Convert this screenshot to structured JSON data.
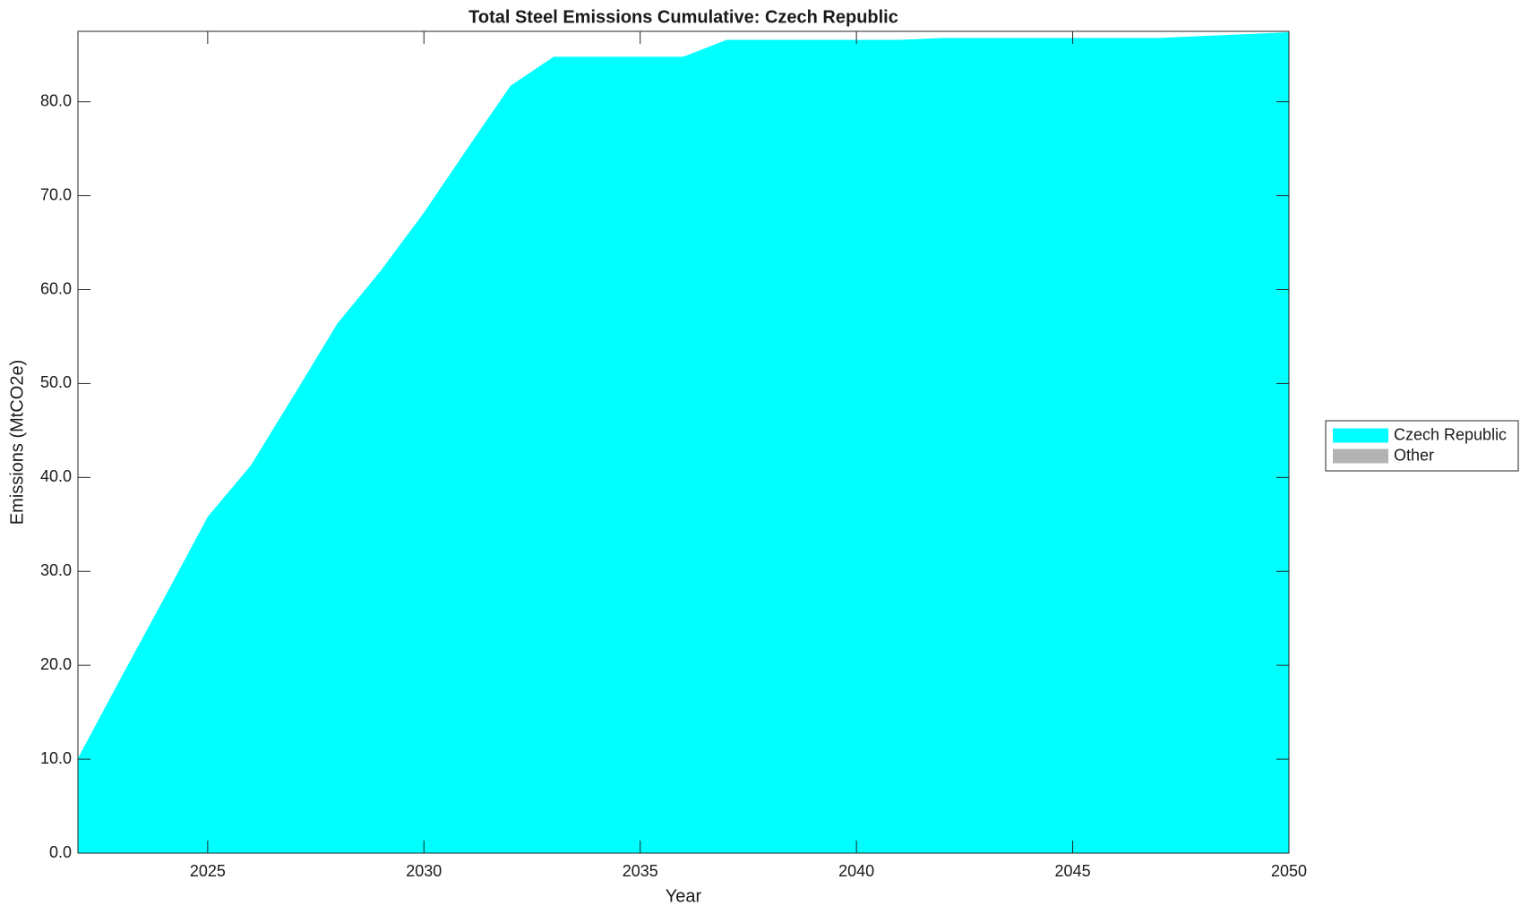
{
  "chart_data": {
    "type": "area",
    "title": "Total Steel Emissions Cumulative: Czech Republic",
    "x_label": "Year",
    "y_label": "Emissions (MtCO2e)",
    "x": [
      2022,
      2023,
      2024,
      2025,
      2026,
      2027,
      2028,
      2029,
      2030,
      2031,
      2032,
      2033,
      2034,
      2035,
      2036,
      2037,
      2038,
      2039,
      2040,
      2041,
      2042,
      2043,
      2044,
      2045,
      2046,
      2047,
      2048,
      2049,
      2050
    ],
    "series": [
      {
        "name": "Czech Republic",
        "color": "#00ffff",
        "values": [
          10.1,
          18.7,
          27.2,
          35.8,
          41.3,
          48.8,
          56.4,
          62.0,
          68.2,
          75.0,
          81.7,
          84.8,
          84.8,
          84.8,
          84.8,
          86.6,
          86.6,
          86.6,
          86.6,
          86.6,
          86.8,
          86.8,
          86.8,
          86.8,
          86.8,
          86.8,
          87.0,
          87.2,
          87.4
        ]
      },
      {
        "name": "Other",
        "color": "#b3b3b3",
        "values": [
          0,
          0,
          0,
          0,
          0,
          0,
          0,
          0,
          0,
          0,
          0,
          0,
          0,
          0,
          0,
          0,
          0,
          0,
          0,
          0,
          0,
          0,
          0,
          0,
          0,
          0,
          0,
          0,
          0
        ]
      }
    ],
    "xlim": [
      2022,
      2050
    ],
    "xticks": [
      2025,
      2030,
      2035,
      2040,
      2045,
      2050
    ],
    "ylim": [
      0,
      87.5
    ],
    "yticks": [
      {
        "value": 0,
        "label": "0.0"
      },
      {
        "value": 10,
        "label": "10.0"
      },
      {
        "value": 20,
        "label": "20.0"
      },
      {
        "value": 30,
        "label": "30.0"
      },
      {
        "value": 40,
        "label": "40.0"
      },
      {
        "value": 50,
        "label": "50.0"
      },
      {
        "value": 60,
        "label": "60.0"
      },
      {
        "value": 70,
        "label": "70.0"
      },
      {
        "value": 80,
        "label": "80.0"
      }
    ],
    "legend": "outside-right"
  }
}
